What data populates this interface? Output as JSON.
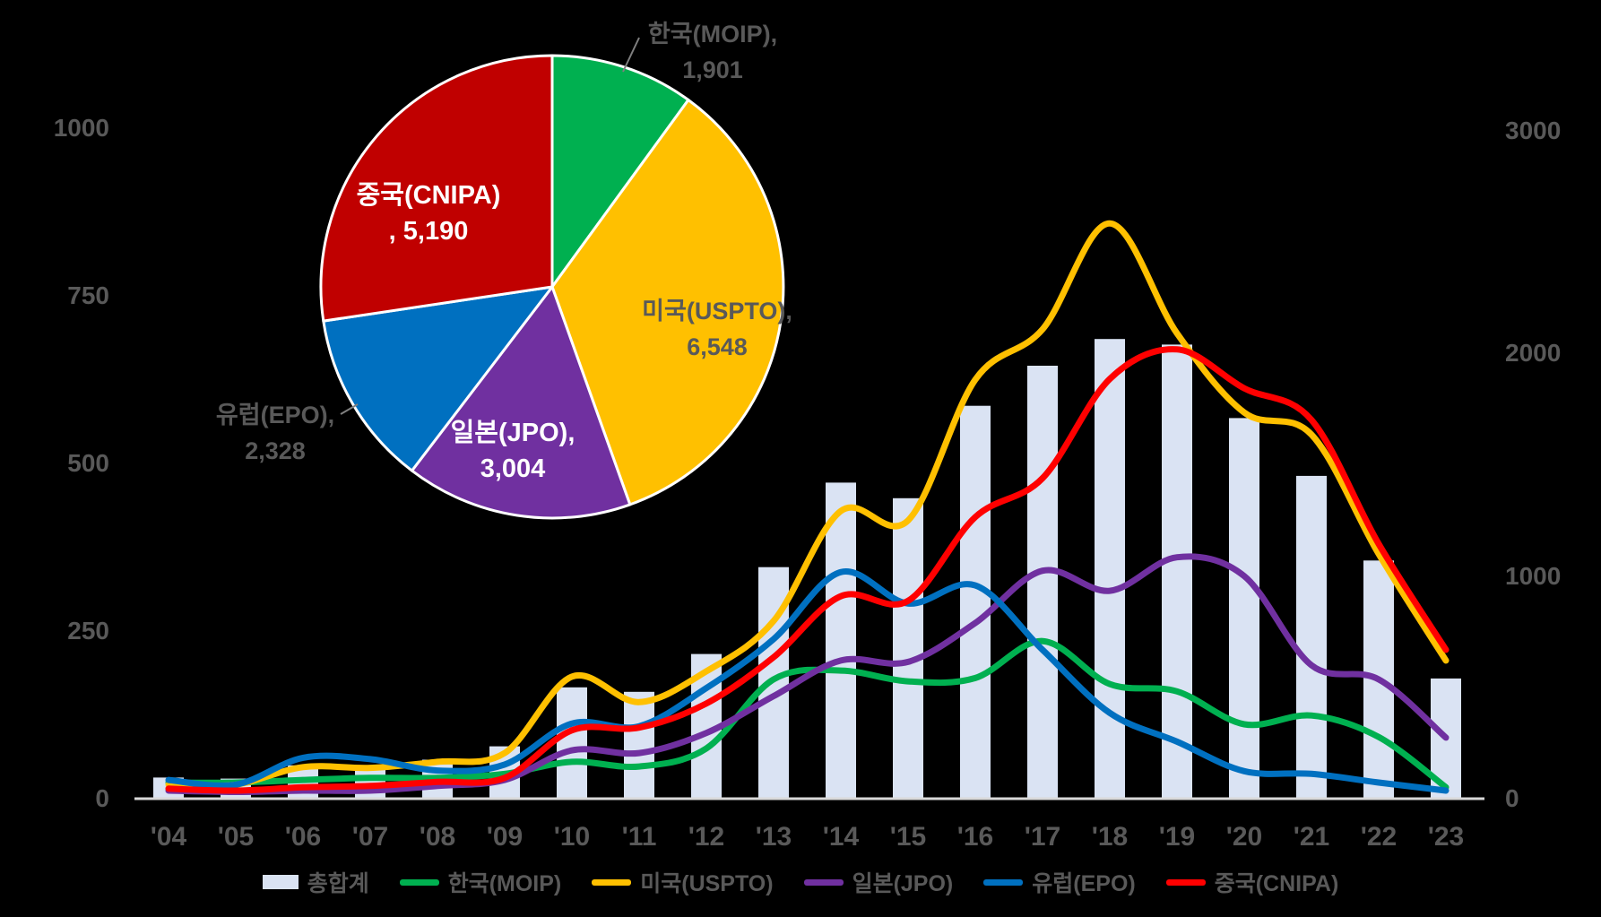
{
  "colors": {
    "background": "#000000",
    "axis_line": "#d9d9d9",
    "text_gray": "#595959",
    "bar_fill": "#dae3f3",
    "korea_green": "#00b050",
    "usa_yellow": "#ffc000",
    "japan_purple": "#7030a0",
    "europe_blue": "#0070c0",
    "china_line_red": "#ff0000",
    "china_pie_red": "#c00000",
    "leader_line": "#7f7f7f",
    "pie_border": "#ffffff"
  },
  "chart_data": [
    {
      "type": "pie",
      "title": "",
      "start_angle_deg": 0,
      "direction": "clockwise",
      "slices": [
        {
          "name": "한국(MOIP)",
          "slug": "korea",
          "value": 1901,
          "color": "#00b050",
          "label_line1": "한국(MOIP),",
          "label_line2": "1,901",
          "label_position": "outside"
        },
        {
          "name": "미국(USPTO)",
          "slug": "usa",
          "value": 6548,
          "color": "#ffc000",
          "label_line1": "미국(USPTO),",
          "label_line2": "6,548",
          "label_position": "outside"
        },
        {
          "name": "일본(JPO)",
          "slug": "japan",
          "value": 3004,
          "color": "#7030a0",
          "label_line1": "일본(JPO),",
          "label_line2": "3,004",
          "label_position": "inside"
        },
        {
          "name": "유럽(EPO)",
          "slug": "europe",
          "value": 2328,
          "color": "#0070c0",
          "label_line1": "유럽(EPO),",
          "label_line2": "2,328",
          "label_position": "outside"
        },
        {
          "name": "중국(CNIPA)",
          "slug": "china",
          "value": 5190,
          "color": "#c00000",
          "label_line1": "중국(CNIPA)",
          "label_line2": ",  5,190",
          "label_position": "inside"
        }
      ]
    },
    {
      "type": "combo",
      "categories": [
        "'04",
        "'05",
        "'06",
        "'07",
        "'08",
        "'09",
        "'10",
        "'11",
        "'12",
        "'13",
        "'14",
        "'15",
        "'16",
        "'17",
        "'18",
        "'19",
        "'20",
        "'21",
        "'22",
        "'23"
      ],
      "bar_series": {
        "name": "총합계",
        "slug": "total",
        "axis": "right",
        "color": "#dae3f3",
        "values": [
          95,
          90,
          150,
          150,
          175,
          235,
          500,
          480,
          650,
          1040,
          1420,
          1350,
          1765,
          1945,
          2065,
          2040,
          1710,
          1450,
          1070,
          540
        ]
      },
      "line_series": [
        {
          "name": "한국(MOIP)",
          "slug": "korea",
          "axis": "left",
          "color": "#00b050",
          "values": [
            24,
            24,
            28,
            31,
            31,
            37,
            55,
            48,
            75,
            178,
            191,
            175,
            180,
            235,
            171,
            160,
            111,
            124,
            92,
            17
          ]
        },
        {
          "name": "미국(USPTO)",
          "slug": "usa",
          "axis": "left",
          "color": "#ffc000",
          "values": [
            21,
            21,
            47,
            46,
            55,
            68,
            182,
            144,
            190,
            265,
            429,
            415,
            625,
            700,
            858,
            694,
            576,
            543,
            365,
            206
          ]
        },
        {
          "name": "일본(JPO)",
          "slug": "japan",
          "axis": "left",
          "color": "#7030a0",
          "values": [
            12,
            10,
            12,
            12,
            19,
            28,
            72,
            68,
            98,
            153,
            206,
            204,
            262,
            340,
            310,
            360,
            332,
            199,
            178,
            91
          ]
        },
        {
          "name": "유럽(EPO)",
          "slug": "europe",
          "axis": "left",
          "color": "#0070c0",
          "values": [
            28,
            21,
            61,
            59,
            42,
            51,
            112,
            108,
            165,
            238,
            338,
            291,
            318,
            222,
            128,
            85,
            41,
            37,
            24,
            12
          ]
        },
        {
          "name": "중국(CNIPA)",
          "slug": "china",
          "axis": "left",
          "color": "#ff0000",
          "values": [
            15,
            12,
            17,
            19,
            25,
            31,
            102,
            106,
            142,
            211,
            302,
            295,
            420,
            478,
            626,
            670,
            612,
            565,
            380,
            222
          ]
        }
      ],
      "left_axis": {
        "max": 1000,
        "ticks": [
          {
            "label": "0",
            "value": 0
          },
          {
            "label": "250",
            "value": 250
          },
          {
            "label": "500",
            "value": 500
          },
          {
            "label": "750",
            "value": 750
          },
          {
            "label": "1000",
            "value": 1000
          }
        ]
      },
      "right_axis": {
        "max": 3000,
        "ticks": [
          {
            "label": "0",
            "value": 0
          },
          {
            "label": "1000",
            "value": 1000
          },
          {
            "label": "2000",
            "value": 2000
          },
          {
            "label": "3000",
            "value": 3000
          }
        ]
      },
      "grid": false,
      "legend_position": "bottom"
    }
  ],
  "legend": {
    "items": [
      {
        "label": "총합계",
        "slug": "total",
        "marker": "bar",
        "color": "#dae3f3"
      },
      {
        "label": "한국(MOIP)",
        "slug": "korea",
        "marker": "line",
        "color": "#00b050"
      },
      {
        "label": "미국(USPTO)",
        "slug": "usa",
        "marker": "line",
        "color": "#ffc000"
      },
      {
        "label": "일본(JPO)",
        "slug": "japan",
        "marker": "line",
        "color": "#7030a0"
      },
      {
        "label": "유럽(EPO)",
        "slug": "europe",
        "marker": "line",
        "color": "#0070c0"
      },
      {
        "label": "중국(CNIPA)",
        "slug": "china",
        "marker": "line",
        "color": "#ff0000"
      }
    ]
  }
}
